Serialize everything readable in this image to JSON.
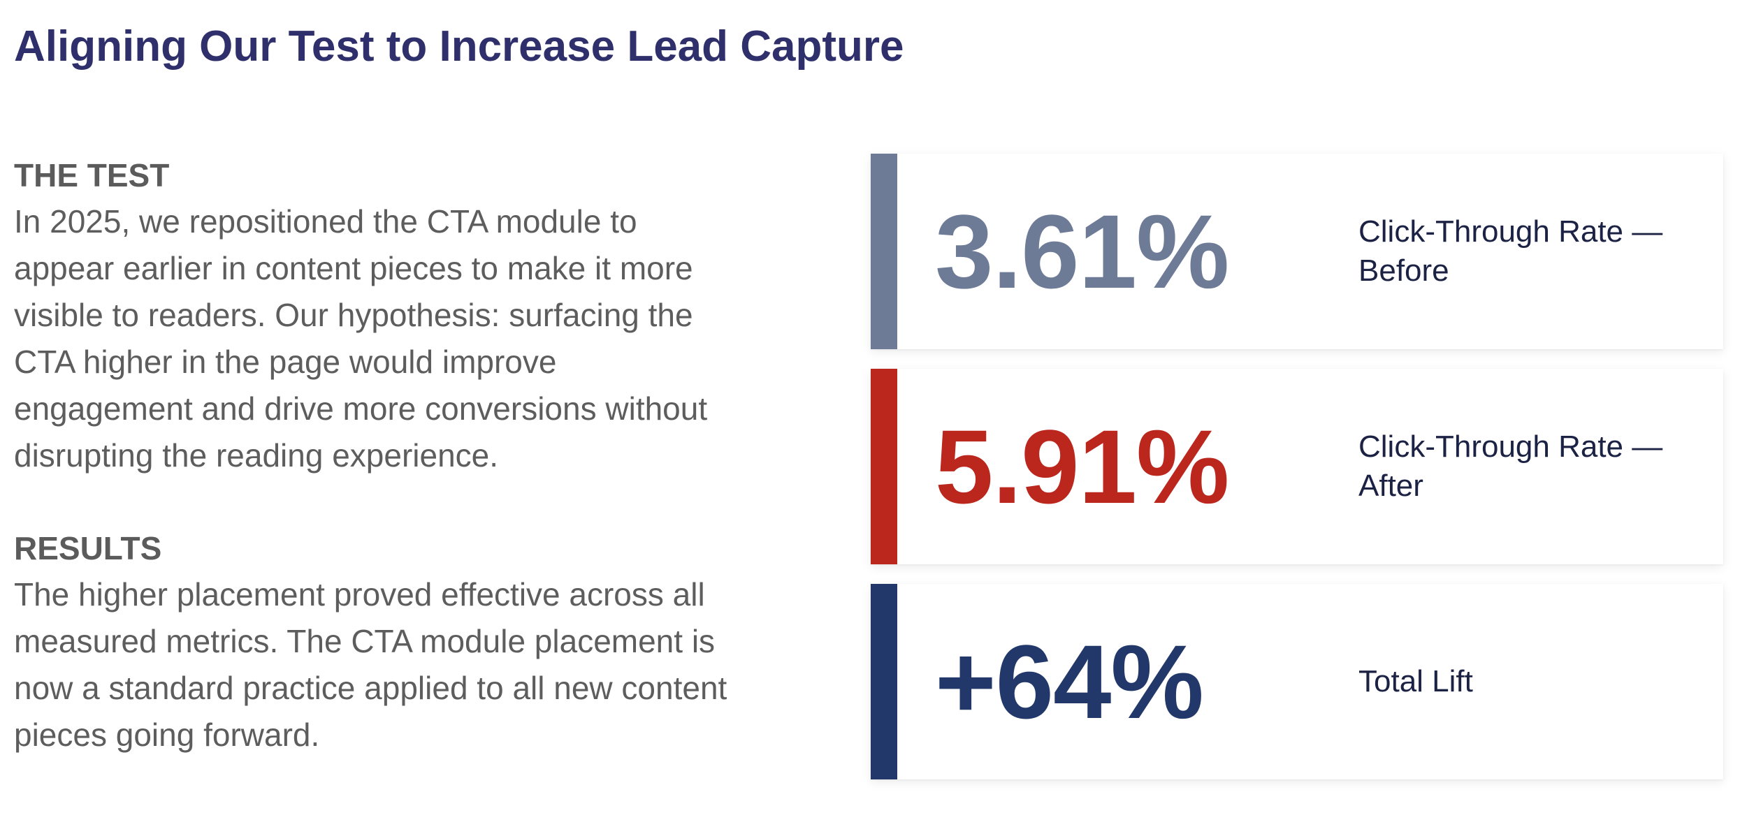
{
  "title": "Aligning Our Test to Increase Lead Capture",
  "test_section": {
    "heading": "THE TEST",
    "body": "In 2025, we repositioned the CTA module to appear earlier in content pieces to make it more visible to readers. Our hypothesis: surfacing the CTA higher in the page would improve engagement and drive more conversions without disrupting the reading experience."
  },
  "results_section": {
    "heading": "RESULTS",
    "body": "The higher placement proved effective across all measured metrics. The CTA module placement is now a standard practice applied to all new content pieces going forward."
  },
  "stats": [
    {
      "value": "3.61%",
      "label": "Click-Through Rate — Before",
      "color": "#6e7b97"
    },
    {
      "value": "5.91%",
      "label": "Click-Through Rate — After",
      "color": "#bb261d"
    },
    {
      "value": "+64%",
      "label": "Total Lift",
      "color": "#22386a"
    }
  ]
}
